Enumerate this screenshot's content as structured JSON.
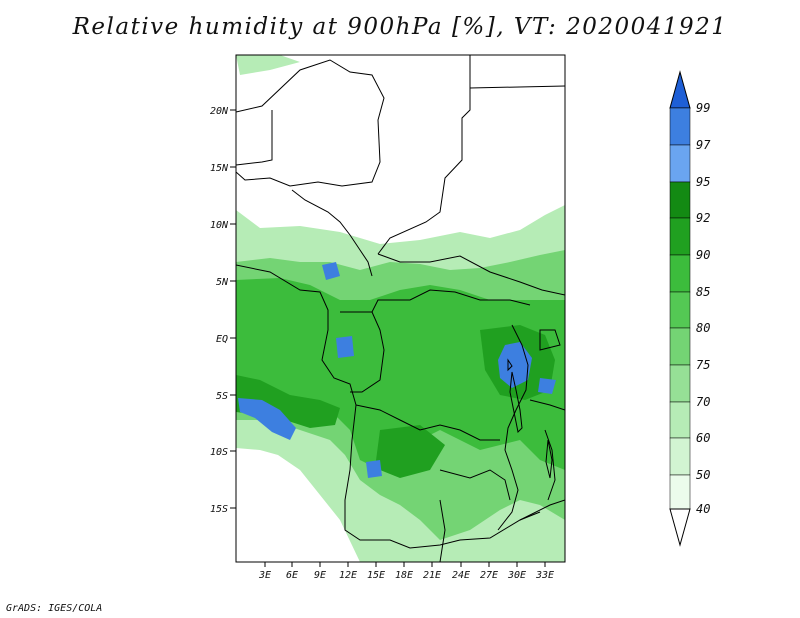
{
  "title": "Relative humidity at 900hPa [%], VT: 2020041921",
  "credit": "GrADS: IGES/COLA",
  "lat_ticks": [
    "20N",
    "15N",
    "10N",
    "5N",
    "EQ",
    "5S",
    "10S",
    "15S"
  ],
  "lon_ticks": [
    "3E",
    "6E",
    "9E",
    "12E",
    "15E",
    "18E",
    "21E",
    "24E",
    "27E",
    "30E",
    "33E"
  ],
  "colorbar": {
    "labels": [
      "99",
      "97",
      "95",
      "92",
      "90",
      "85",
      "80",
      "75",
      "70",
      "60",
      "50",
      "40"
    ],
    "colors": [
      "#1e5fd6",
      "#3d7fe0",
      "#6aa5f0",
      "#138a13",
      "#20a020",
      "#3cbc3c",
      "#54c854",
      "#74d474",
      "#96e096",
      "#b6ecb6",
      "#d2f4d2",
      "#ecfcec"
    ]
  },
  "map_colors": {
    "land": "#ffffff",
    "border": "#000000",
    "rh60": "#b6ecb6",
    "rh75": "#74d474",
    "rh85": "#3cbc3c",
    "rh92": "#20a020",
    "rh97": "#3d7fe0"
  }
}
